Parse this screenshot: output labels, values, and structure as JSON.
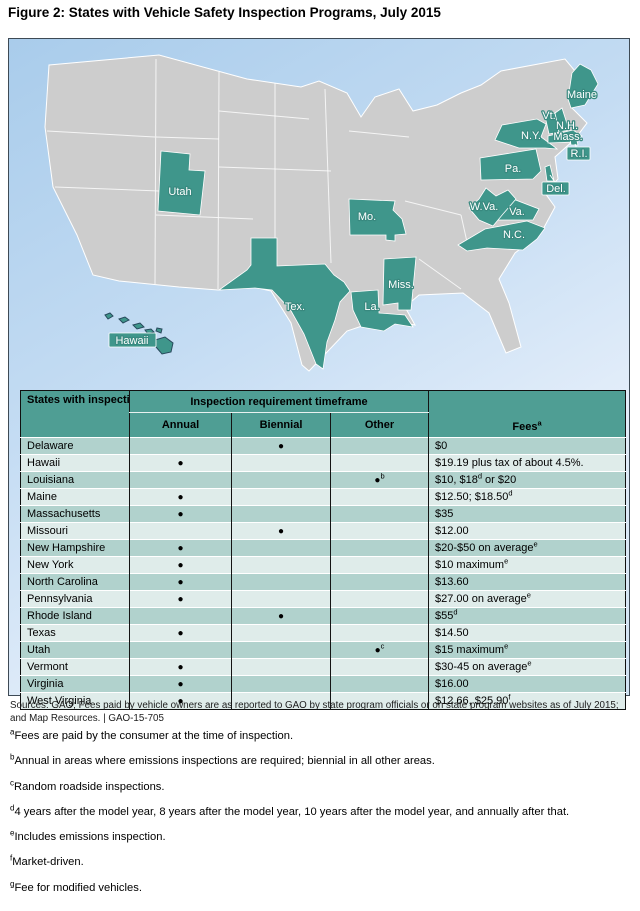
{
  "title": "Figure 2: States with Vehicle Safety Inspection Programs, July 2015",
  "colors": {
    "state_highlight": "#3f968b",
    "land": "#cdcdcd",
    "ocean_top": "#a9cceb",
    "table_header": "#4f9e94",
    "row_dark": "#b1d2cd",
    "row_light": "#dfecea"
  },
  "map": {
    "labels": {
      "utah": "Utah",
      "mo": "Mo.",
      "tex": "Tex.",
      "la": "La.",
      "miss": "Miss.",
      "nc": "N.C.",
      "va": "Va.",
      "wva": "W.Va.",
      "pa": "Pa.",
      "ny": "N.Y.",
      "maine": "Maine",
      "vt": "Vt.",
      "nh": "N.H.",
      "mass": "Mass.",
      "ri": "R.I.",
      "del": "Del.",
      "hawaii": "Hawaii"
    }
  },
  "table": {
    "header": {
      "states": "States with inspection programs",
      "group": "Inspection requirement timeframe",
      "annual": "Annual",
      "biennial": "Biennial",
      "other": "Other",
      "fees": "Fees",
      "fees_sup": "a"
    },
    "rows": [
      {
        "state": "Delaware",
        "annual": "",
        "biennial": "●",
        "other": "",
        "other_sup": "",
        "fee": "$0",
        "fee_sup": "",
        "fee_tail": ""
      },
      {
        "state": "Hawaii",
        "annual": "●",
        "biennial": "",
        "other": "",
        "other_sup": "",
        "fee": "$19.19 plus tax of about 4.5%.",
        "fee_sup": "",
        "fee_tail": ""
      },
      {
        "state": "Louisiana",
        "annual": "",
        "biennial": "",
        "other": "●",
        "other_sup": "b",
        "fee": "$10, $18",
        "fee_sup": "d",
        "fee_tail": " or $20"
      },
      {
        "state": "Maine",
        "annual": "●",
        "biennial": "",
        "other": "",
        "other_sup": "",
        "fee": "$12.50; $18.50",
        "fee_sup": "d",
        "fee_tail": ""
      },
      {
        "state": "Massachusetts",
        "annual": "●",
        "biennial": "",
        "other": "",
        "other_sup": "",
        "fee": "$35",
        "fee_sup": "",
        "fee_tail": ""
      },
      {
        "state": "Missouri",
        "annual": "",
        "biennial": "●",
        "other": "",
        "other_sup": "",
        "fee": "$12.00",
        "fee_sup": "",
        "fee_tail": ""
      },
      {
        "state": "New Hampshire",
        "annual": "●",
        "biennial": "",
        "other": "",
        "other_sup": "",
        "fee": "$20-$50 on average",
        "fee_sup": "e",
        "fee_tail": ""
      },
      {
        "state": "New York",
        "annual": "●",
        "biennial": "",
        "other": "",
        "other_sup": "",
        "fee": "$10 maximum",
        "fee_sup": "e",
        "fee_tail": ""
      },
      {
        "state": "North Carolina",
        "annual": "●",
        "biennial": "",
        "other": "",
        "other_sup": "",
        "fee": "$13.60",
        "fee_sup": "",
        "fee_tail": ""
      },
      {
        "state": "Pennsylvania",
        "annual": "●",
        "biennial": "",
        "other": "",
        "other_sup": "",
        "fee": "$27.00 on average",
        "fee_sup": "e",
        "fee_tail": ""
      },
      {
        "state": "Rhode Island",
        "annual": "",
        "biennial": "●",
        "other": "",
        "other_sup": "",
        "fee": "$55",
        "fee_sup": "d",
        "fee_tail": ""
      },
      {
        "state": "Texas",
        "annual": "●",
        "biennial": "",
        "other": "",
        "other_sup": "",
        "fee": "$14.50",
        "fee_sup": "",
        "fee_tail": ""
      },
      {
        "state": "Utah",
        "annual": "",
        "biennial": "",
        "other": "●",
        "other_sup": "c",
        "fee": "$15 maximum",
        "fee_sup": "e",
        "fee_tail": ""
      },
      {
        "state": "Vermont",
        "annual": "●",
        "biennial": "",
        "other": "",
        "other_sup": "",
        "fee": "$30-45 on average",
        "fee_sup": "e",
        "fee_tail": ""
      },
      {
        "state": "Virginia",
        "annual": "●",
        "biennial": "",
        "other": "",
        "other_sup": "",
        "fee": "$16.00",
        "fee_sup": "",
        "fee_tail": ""
      },
      {
        "state": "West Virginia",
        "annual": "●",
        "biennial": "",
        "other": "",
        "other_sup": "",
        "fee": "$12.66, $25.90",
        "fee_sup": "f",
        "fee_tail": ""
      }
    ]
  },
  "source_note": "Sources: GAO; Fees paid by vehicle owners are as reported to GAO by state program officials or on state program websites as of July 2015; and Map Resources.  |  GAO-15-705",
  "footnotes": [
    {
      "sup": "a",
      "text": "Fees are paid by the consumer at the time of inspection."
    },
    {
      "sup": "b",
      "text": "Annual in areas where emissions inspections are required; biennial in all other areas."
    },
    {
      "sup": "c",
      "text": "Random roadside inspections."
    },
    {
      "sup": "d",
      "text": "4 years after the model year, 8 years after the model year, 10 years after the model year, and annually after that."
    },
    {
      "sup": "e",
      "text": "Includes emissions inspection."
    },
    {
      "sup": "f",
      "text": "Market-driven."
    },
    {
      "sup": "g",
      "text": "Fee for modified vehicles."
    }
  ]
}
